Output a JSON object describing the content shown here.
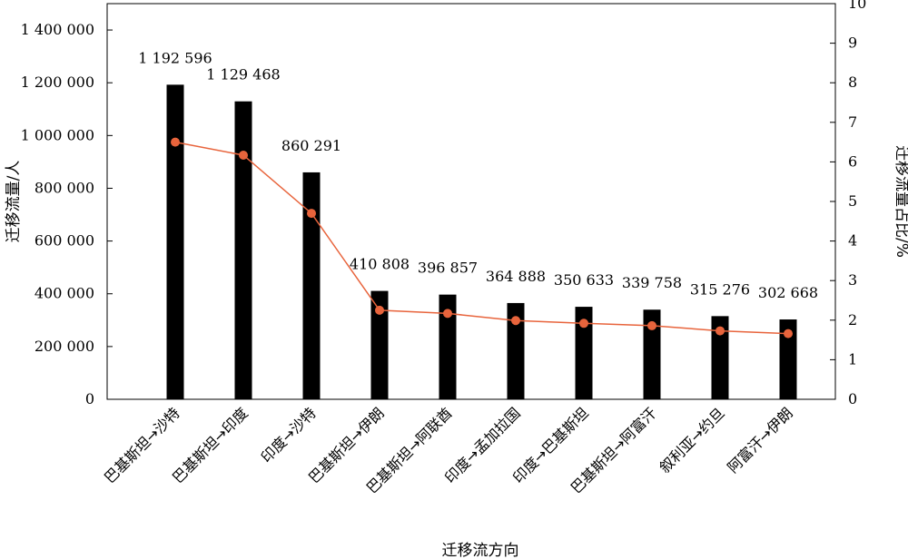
{
  "chart_data": {
    "type": "bar",
    "categories": [
      "巴基斯坦→沙特",
      "巴基斯坦→印度",
      "印度→沙特",
      "巴基斯坦→伊朗",
      "巴基斯坦→阿联酋",
      "印度→孟加拉国",
      "印度→巴基斯坦",
      "巴基斯坦→阿富汗",
      "叙利亚→约旦",
      "阿富汗→伊朗"
    ],
    "series": [
      {
        "type": "bar",
        "axis": "left",
        "color": "#000000",
        "values": [
          1192596,
          1129468,
          860291,
          410808,
          396857,
          364888,
          350633,
          339758,
          315276,
          302668
        ],
        "labels": [
          "1 192 596",
          "1 129 468",
          "860 291",
          "410 808",
          "396 857",
          "364 888",
          "350 633",
          "339 758",
          "315 276",
          "302 668"
        ]
      },
      {
        "type": "line",
        "axis": "right",
        "color": "#E8643C",
        "values": [
          6.5,
          6.17,
          4.7,
          2.25,
          2.17,
          1.99,
          1.92,
          1.86,
          1.73,
          1.66
        ]
      }
    ],
    "xlabel": "迁移流方向",
    "ylabel": "迁移流量/人",
    "y2label": "迁移流量占比/%",
    "ylim": [
      0,
      1500000
    ],
    "y2lim": [
      0,
      10
    ],
    "yticks": [
      "0",
      "200 000",
      "400 000",
      "600 000",
      "800 000",
      "1 000 000",
      "1 200 000",
      "1 400 000"
    ],
    "y2ticks": [
      "0",
      "1",
      "2",
      "3",
      "4",
      "5",
      "6",
      "7",
      "8",
      "9",
      "10"
    ],
    "grid": false,
    "legend": "none"
  }
}
